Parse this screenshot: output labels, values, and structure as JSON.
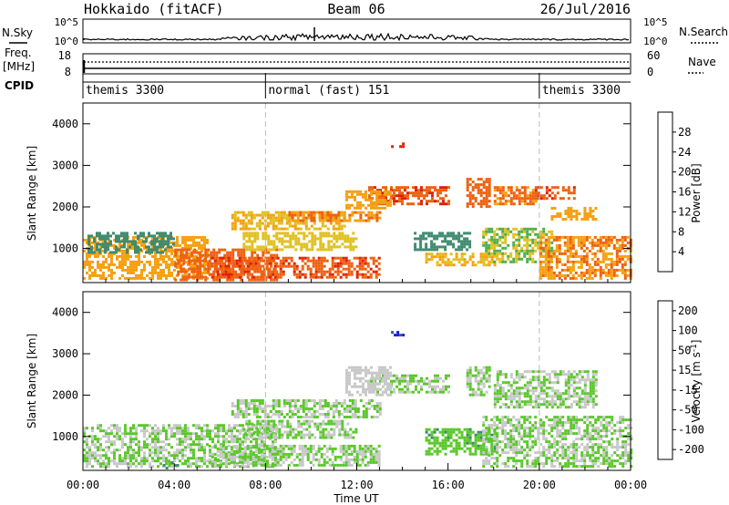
{
  "header": {
    "radar": "Hokkaido (fitACF)",
    "beam": "Beam 06",
    "date": "26/Jul/2016"
  },
  "top_panels": {
    "nsky_label": "N.Sky",
    "nsky_ticks": [
      "10^5",
      "10^0"
    ],
    "nsky_right_ticks": [
      "10^5",
      "10^0"
    ],
    "nsearch_label": "N.Search",
    "freq_label_1": "Freq.",
    "freq_label_2": "[MHz]",
    "freq_ticks": [
      "18",
      "8"
    ],
    "nave_ticks": [
      "60",
      "0"
    ],
    "nave_label": "Nave",
    "cpid_label": "CPID",
    "cpid_segments": [
      {
        "label": "themis 3300",
        "start": 0.0,
        "end": 8.0
      },
      {
        "label": "normal (fast) 151",
        "start": 8.0,
        "end": 20.0
      },
      {
        "label": "themis 3300",
        "start": 20.0,
        "end": 24.0
      }
    ]
  },
  "chart_data": [
    {
      "type": "heatmap",
      "name": "Power",
      "xlabel": "",
      "ylabel": "Slant Range [km]",
      "x_range_hours": [
        0,
        24
      ],
      "ylim": [
        180,
        4500
      ],
      "yticks": [
        1000,
        2000,
        3000,
        4000
      ],
      "colorbar_label": "Power [dB]",
      "colorbar_ticks": [
        "4",
        "8",
        "12",
        "16",
        "20",
        "24",
        "28"
      ],
      "colorbar_range": [
        0,
        32
      ],
      "colors": [
        "#1a1adc",
        "#2b5ca8",
        "#3f8a6e",
        "#4cae4c",
        "#e0c020",
        "#f5a010",
        "#ee6010",
        "#e02000"
      ],
      "echo_regions": [
        {
          "t0": 0.0,
          "t1": 5.5,
          "r0": 250,
          "r1": 1300,
          "level": 22
        },
        {
          "t0": 0.2,
          "t1": 4.0,
          "r0": 900,
          "r1": 1400,
          "level": 10
        },
        {
          "t0": 4.0,
          "t1": 8.5,
          "r0": 250,
          "r1": 1000,
          "level": 26
        },
        {
          "t0": 5.5,
          "t1": 13.0,
          "r0": 300,
          "r1": 800,
          "level": 27
        },
        {
          "t0": 7.0,
          "t1": 12.0,
          "r0": 1000,
          "r1": 1400,
          "level": 18
        },
        {
          "t0": 6.5,
          "t1": 11.5,
          "r0": 1500,
          "r1": 1900,
          "level": 20
        },
        {
          "t0": 9.0,
          "t1": 13.0,
          "r0": 1650,
          "r1": 1900,
          "level": 24
        },
        {
          "t0": 12.5,
          "t1": 16.0,
          "r0": 2100,
          "r1": 2500,
          "level": 27
        },
        {
          "t0": 11.5,
          "t1": 13.5,
          "r0": 2000,
          "r1": 2400,
          "level": 22
        },
        {
          "t0": 13.5,
          "t1": 14.0,
          "r0": 3450,
          "r1": 3550,
          "level": 28
        },
        {
          "t0": 14.5,
          "t1": 17.0,
          "r0": 1000,
          "r1": 1400,
          "level": 10
        },
        {
          "t0": 15.0,
          "t1": 18.0,
          "r0": 600,
          "r1": 900,
          "level": 20
        },
        {
          "t0": 16.8,
          "t1": 17.8,
          "r0": 2000,
          "r1": 2700,
          "level": 26
        },
        {
          "t0": 18.0,
          "t1": 19.8,
          "r0": 2100,
          "r1": 2500,
          "level": 25
        },
        {
          "t0": 19.8,
          "t1": 21.5,
          "r0": 2200,
          "r1": 2500,
          "level": 27
        },
        {
          "t0": 20.5,
          "t1": 22.5,
          "r0": 1700,
          "r1": 2000,
          "level": 22
        },
        {
          "t0": 17.5,
          "t1": 20.5,
          "r0": 700,
          "r1": 1500,
          "level": 16
        },
        {
          "t0": 20.0,
          "t1": 24.0,
          "r0": 250,
          "r1": 1300,
          "level": 24
        }
      ]
    },
    {
      "type": "heatmap",
      "name": "Velocity",
      "xlabel": "Time UT",
      "ylabel": "Slant Range [km]",
      "x_range_hours": [
        0,
        24
      ],
      "xticks": [
        "00:00",
        "04:00",
        "08:00",
        "12:00",
        "16:00",
        "20:00",
        "00:00"
      ],
      "ylim": [
        180,
        4500
      ],
      "yticks": [
        1000,
        2000,
        3000,
        4000
      ],
      "colorbar_label": "Velocity [m s^-1]",
      "colorbar_ticks": [
        "200",
        "100",
        "50",
        "15",
        "-15",
        "-50",
        "-100",
        "-200"
      ],
      "colorbar_range": [
        -250,
        250
      ],
      "colors": [
        "#1a1adc",
        "#2b5ca8",
        "#3f8a6e",
        "#5ac82a",
        "#c8c8c8",
        "#f5a010",
        "#ee6010",
        "#e02000"
      ],
      "echo_regions": [
        {
          "t0": 0.0,
          "t1": 8.5,
          "r0": 250,
          "r1": 1300,
          "level": 0
        },
        {
          "t0": 3.5,
          "t1": 4.2,
          "r0": 250,
          "r1": 400,
          "level": -60
        },
        {
          "t0": 5.5,
          "t1": 13.0,
          "r0": 300,
          "r1": 800,
          "level": 0
        },
        {
          "t0": 7.0,
          "t1": 12.0,
          "r0": 1000,
          "r1": 1400,
          "level": 0
        },
        {
          "t0": 6.5,
          "t1": 13.0,
          "r0": 1500,
          "r1": 1900,
          "level": 0
        },
        {
          "t0": 12.5,
          "t1": 16.0,
          "r0": 2100,
          "r1": 2500,
          "level": 0
        },
        {
          "t0": 11.5,
          "t1": 13.5,
          "r0": 2000,
          "r1": 2700,
          "level": 30
        },
        {
          "t0": 13.5,
          "t1": 14.0,
          "r0": 3450,
          "r1": 3550,
          "level": -200
        },
        {
          "t0": 15.0,
          "t1": 18.0,
          "r0": 600,
          "r1": 1200,
          "level": -40
        },
        {
          "t0": 16.8,
          "t1": 17.8,
          "r0": 2000,
          "r1": 2700,
          "level": 0
        },
        {
          "t0": 18.0,
          "t1": 22.5,
          "r0": 1700,
          "r1": 2600,
          "level": 0
        },
        {
          "t0": 17.5,
          "t1": 24.0,
          "r0": 250,
          "r1": 1500,
          "level": 0
        }
      ]
    }
  ]
}
